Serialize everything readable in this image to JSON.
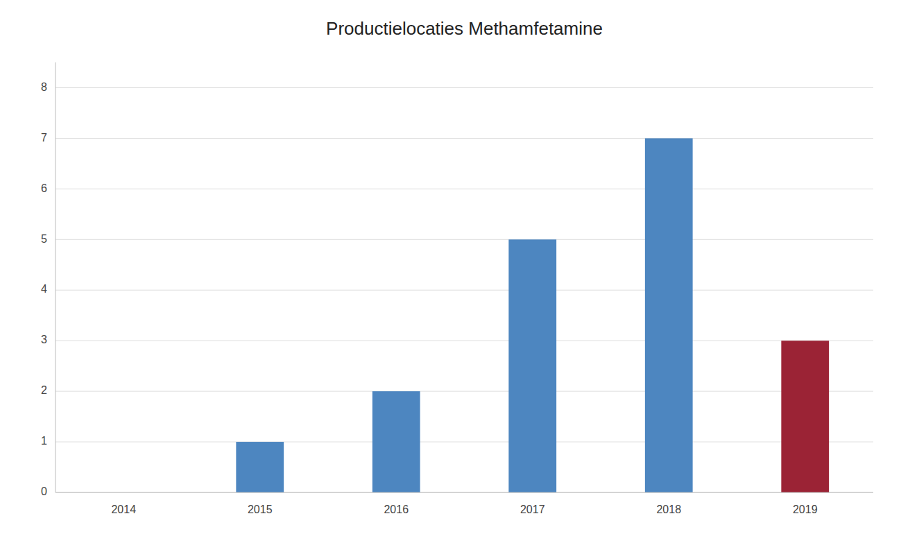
{
  "chart_data": {
    "type": "bar",
    "title": "Productielocaties Methamfetamine",
    "categories": [
      "2014",
      "2015",
      "2016",
      "2017",
      "2018",
      "2019"
    ],
    "values": [
      0,
      1,
      2,
      5,
      7,
      3
    ],
    "colors": [
      "#4d86c0",
      "#4d86c0",
      "#4d86c0",
      "#4d86c0",
      "#4d86c0",
      "#9b2335"
    ],
    "ylim": [
      0,
      8.5
    ],
    "yticks": [
      0,
      1,
      2,
      3,
      4,
      5,
      6,
      7,
      8
    ],
    "grid": true
  }
}
